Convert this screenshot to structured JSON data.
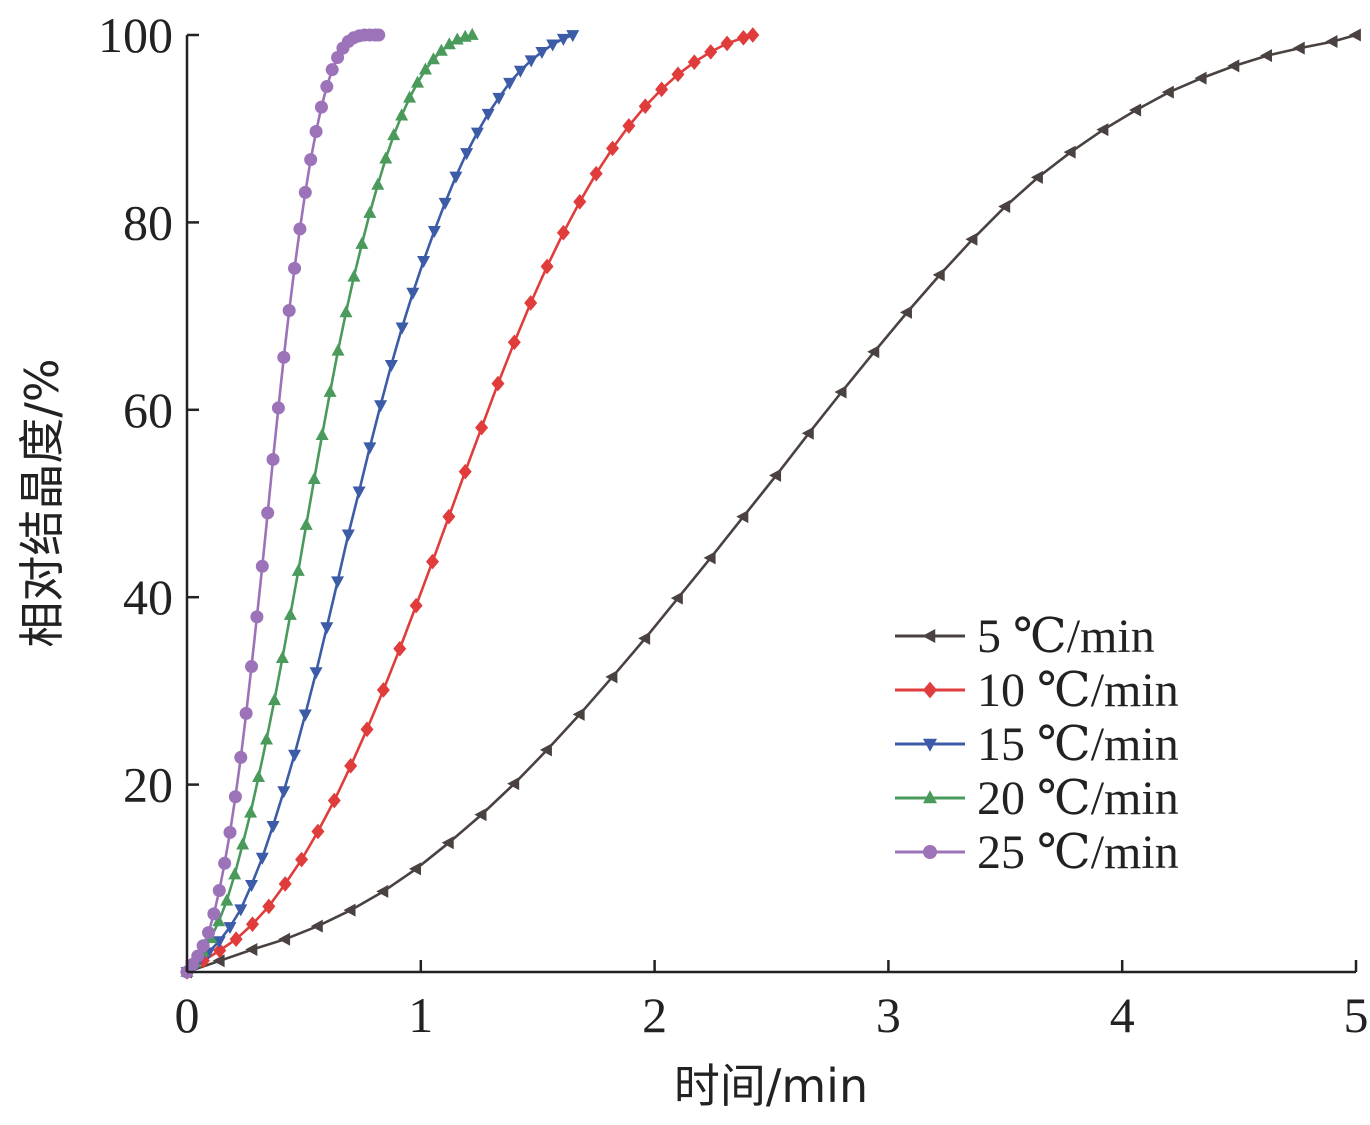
{
  "chart_data": {
    "type": "line",
    "xlabel": "时间/min",
    "ylabel": "相对结晶度/%",
    "xlim": [
      0,
      5
    ],
    "ylim": [
      0,
      100
    ],
    "xticks": [
      "0",
      "1",
      "2",
      "3",
      "4",
      "5"
    ],
    "yticks": [
      "20",
      "40",
      "60",
      "80",
      "100"
    ],
    "grid": false,
    "legend_position": "center-right",
    "series": [
      {
        "name": "5 ℃/min",
        "color": "#4a4240",
        "marker": "triangle-left",
        "x": [
          0,
          0.14,
          0.28,
          0.42,
          0.56,
          0.7,
          0.84,
          0.98,
          1.12,
          1.26,
          1.4,
          1.54,
          1.68,
          1.82,
          1.96,
          2.1,
          2.24,
          2.38,
          2.52,
          2.66,
          2.8,
          2.94,
          3.08,
          3.22,
          3.36,
          3.5,
          3.64,
          3.78,
          3.92,
          4.06,
          4.2,
          4.34,
          4.48,
          4.62,
          4.76,
          4.9,
          5.0
        ],
        "y": [
          0,
          1.2,
          2.4,
          3.5,
          4.9,
          6.6,
          8.6,
          11,
          13.8,
          16.8,
          20.1,
          23.7,
          27.5,
          31.5,
          35.6,
          39.9,
          44.2,
          48.6,
          53.0,
          57.5,
          61.9,
          66.2,
          70.4,
          74.4,
          78.2,
          81.7,
          84.8,
          87.5,
          89.9,
          92.0,
          93.9,
          95.4,
          96.7,
          97.8,
          98.6,
          99.3,
          100
        ]
      },
      {
        "name": "10 ℃/min",
        "color": "#e03c3c",
        "marker": "diamond",
        "x": [
          0,
          0.07,
          0.14,
          0.21,
          0.28,
          0.35,
          0.42,
          0.49,
          0.56,
          0.63,
          0.7,
          0.77,
          0.84,
          0.91,
          0.98,
          1.05,
          1.12,
          1.19,
          1.26,
          1.33,
          1.4,
          1.47,
          1.54,
          1.61,
          1.68,
          1.75,
          1.82,
          1.89,
          1.96,
          2.03,
          2.1,
          2.17,
          2.24,
          2.31,
          2.38,
          2.42
        ],
        "y": [
          0,
          1.2,
          2.3,
          3.5,
          5.1,
          7.0,
          9.4,
          12.0,
          15.0,
          18.3,
          22.0,
          25.9,
          30.1,
          34.5,
          39.1,
          43.8,
          48.6,
          53.4,
          58.1,
          62.8,
          67.2,
          71.4,
          75.3,
          78.9,
          82.2,
          85.2,
          87.9,
          90.3,
          92.4,
          94.2,
          95.8,
          97.1,
          98.2,
          99.1,
          99.7,
          100
        ]
      },
      {
        "name": "15 ℃/min",
        "color": "#3c5ca8",
        "marker": "triangle-down",
        "x": [
          0,
          0.046,
          0.092,
          0.138,
          0.184,
          0.23,
          0.276,
          0.322,
          0.368,
          0.414,
          0.46,
          0.506,
          0.552,
          0.598,
          0.644,
          0.69,
          0.736,
          0.782,
          0.828,
          0.874,
          0.92,
          0.966,
          1.012,
          1.058,
          1.104,
          1.15,
          1.196,
          1.242,
          1.288,
          1.334,
          1.38,
          1.426,
          1.472,
          1.518,
          1.564,
          1.61,
          1.65
        ],
        "y": [
          0,
          1.0,
          2.1,
          3.3,
          4.8,
          6.7,
          9.3,
          12.2,
          15.6,
          19.3,
          23.2,
          27.5,
          32.0,
          36.8,
          41.7,
          46.7,
          51.3,
          56.0,
          60.5,
          64.8,
          68.8,
          72.5,
          75.9,
          79.1,
          82.1,
          84.9,
          87.4,
          89.6,
          91.6,
          93.3,
          94.9,
          96.2,
          97.3,
          98.2,
          99.0,
          99.6,
          100
        ]
      },
      {
        "name": "20 ℃/min",
        "color": "#4a9a5c",
        "marker": "triangle-up",
        "x": [
          0,
          0.034,
          0.068,
          0.102,
          0.136,
          0.17,
          0.204,
          0.238,
          0.272,
          0.306,
          0.34,
          0.374,
          0.408,
          0.442,
          0.476,
          0.51,
          0.544,
          0.578,
          0.612,
          0.646,
          0.68,
          0.714,
          0.748,
          0.782,
          0.816,
          0.85,
          0.884,
          0.918,
          0.952,
          0.986,
          1.02,
          1.054,
          1.088,
          1.122,
          1.156,
          1.19,
          1.22
        ],
        "y": [
          0,
          1.0,
          2.2,
          3.6,
          5.4,
          7.6,
          10.4,
          13.6,
          17.0,
          20.8,
          24.8,
          29.0,
          33.5,
          38.1,
          42.8,
          47.7,
          52.6,
          57.3,
          61.9,
          66.3,
          70.4,
          74.2,
          77.7,
          81.0,
          84.0,
          86.8,
          89.3,
          91.4,
          93.3,
          94.9,
          96.3,
          97.4,
          98.3,
          99.0,
          99.5,
          99.8,
          100
        ]
      },
      {
        "name": "25 ℃/min",
        "color": "#9c72b8",
        "marker": "circle",
        "x": [
          0,
          0.023,
          0.046,
          0.069,
          0.092,
          0.115,
          0.138,
          0.161,
          0.184,
          0.207,
          0.23,
          0.253,
          0.276,
          0.299,
          0.322,
          0.345,
          0.368,
          0.391,
          0.414,
          0.437,
          0.46,
          0.483,
          0.506,
          0.529,
          0.552,
          0.575,
          0.598,
          0.621,
          0.644,
          0.667,
          0.69,
          0.713,
          0.736,
          0.759,
          0.782,
          0.805,
          0.82
        ],
        "y": [
          0,
          0.8,
          1.7,
          2.8,
          4.2,
          6.2,
          8.7,
          11.6,
          14.9,
          18.7,
          22.9,
          27.6,
          32.6,
          37.9,
          43.3,
          49.0,
          54.7,
          60.2,
          65.6,
          70.6,
          75.1,
          79.3,
          83.2,
          86.7,
          89.7,
          92.3,
          94.5,
          96.3,
          97.6,
          98.6,
          99.3,
          99.7,
          99.9,
          100,
          100,
          100,
          100
        ]
      }
    ]
  }
}
